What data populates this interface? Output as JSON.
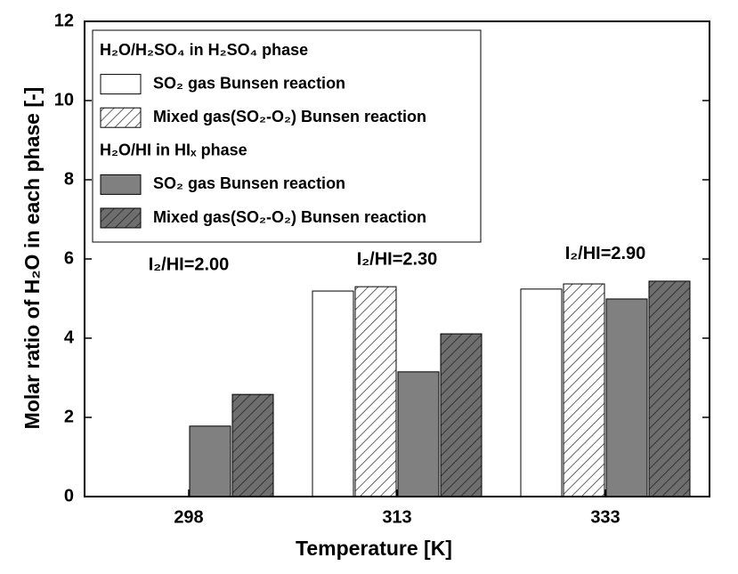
{
  "chart_data": {
    "type": "bar",
    "x_label": "Temperature [K]",
    "y_label": "Molar ratio of H₂O in each phase [-]",
    "categories": [
      "298",
      "313",
      "333"
    ],
    "legend_headers": [
      "H₂O/H₂SO₄ in H₂SO₄ phase",
      "H₂O/HI in HIₓ phase"
    ],
    "series": [
      {
        "name": "SO₂ gas Bunsen reaction",
        "color": "#ffffff",
        "hatch": false,
        "values": [
          null,
          5.19,
          5.24
        ]
      },
      {
        "name": "Mixed gas(SO₂-O₂) Bunsen reaction",
        "color": "#ffffff",
        "hatch": true,
        "values": [
          null,
          5.3,
          5.37
        ]
      },
      {
        "name": "SO₂ gas Bunsen reaction",
        "color": "#808080",
        "hatch": false,
        "values": [
          1.78,
          3.15,
          4.99
        ]
      },
      {
        "name": "Mixed gas(SO₂-O₂) Bunsen reaction",
        "color": "#6e6e6e",
        "hatch": true,
        "values": [
          2.58,
          4.11,
          5.44
        ]
      }
    ],
    "annotations": [
      "I₂/HI=2.00",
      "I₂/HI=2.30",
      "I₂/HI=2.90"
    ],
    "ylim": [
      0,
      12
    ],
    "yticks": [
      0,
      2,
      4,
      6,
      8,
      10,
      12
    ],
    "grid": false
  }
}
